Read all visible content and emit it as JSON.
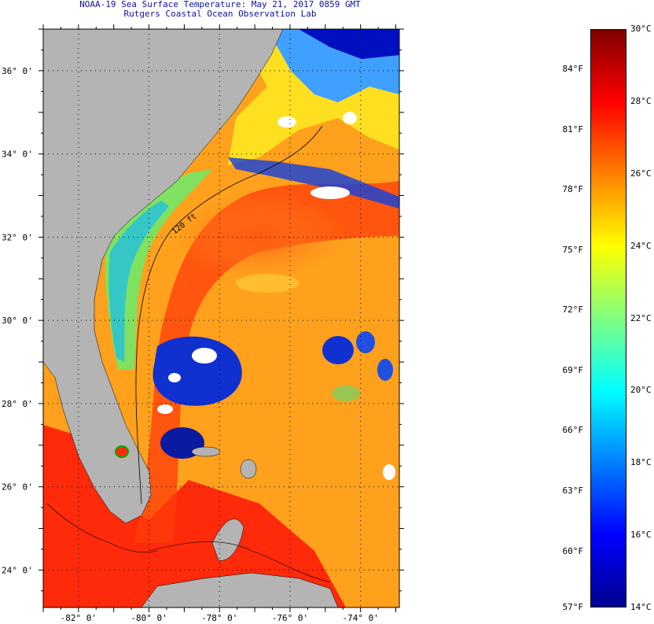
{
  "header": {
    "title": "NOAA-19 Sea Surface Temperature:  May 21, 2017 0859 GMT",
    "subtitle": "Rutgers Coastal Ocean Observation Lab"
  },
  "map": {
    "lat_labels": [
      "36° 0'",
      "34° 0'",
      "32° 0'",
      "30° 0'",
      "28° 0'",
      "26° 0'",
      "24° 0'"
    ],
    "lat_values": [
      36,
      34,
      32,
      30,
      28,
      26,
      24
    ],
    "lon_labels": [
      "-82° 0'",
      "-80° 0'",
      "-78° 0'",
      "-76° 0'",
      "-74° 0'"
    ],
    "lon_values": [
      -82,
      -80,
      -78,
      -76,
      -74
    ],
    "lat_range": [
      23.1,
      37.0
    ],
    "lon_range": [
      -83.0,
      -72.9
    ],
    "isobath_label": "120 ft",
    "land_color": "#b4b4b4",
    "cloud_color": "#ffffff"
  },
  "colorbar": {
    "celsius_labels": [
      "30°C",
      "28°C",
      "26°C",
      "24°C",
      "22°C",
      "20°C",
      "18°C",
      "16°C",
      "14°C"
    ],
    "celsius_values": [
      30,
      28,
      26,
      24,
      22,
      20,
      18,
      16,
      14
    ],
    "fahrenheit_labels": [
      "84°F",
      "81°F",
      "78°F",
      "75°F",
      "72°F",
      "69°F",
      "66°F",
      "63°F",
      "60°F",
      "57°F"
    ],
    "fahrenheit_values": [
      84,
      81,
      78,
      75,
      72,
      69,
      66,
      63,
      60,
      57
    ],
    "range_c": [
      14,
      30
    ],
    "colors": [
      "#00008f",
      "#0000ff",
      "#0080ff",
      "#00ffff",
      "#80ff80",
      "#ffff00",
      "#ff8000",
      "#ff0000",
      "#800000"
    ]
  }
}
